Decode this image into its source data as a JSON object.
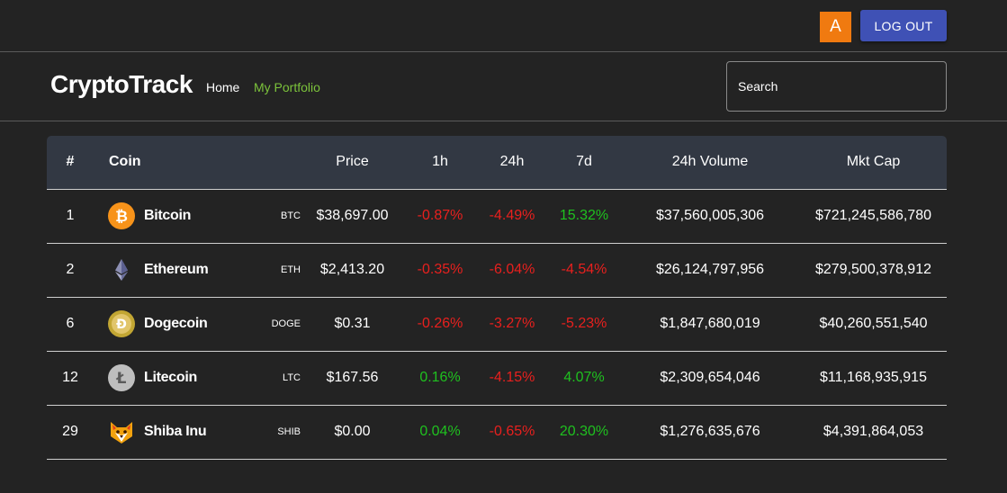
{
  "header": {
    "avatar_letter": "A",
    "logout_label": "LOG OUT"
  },
  "nav": {
    "brand": "CryptoTrack",
    "home": "Home",
    "portfolio": "My Portfolio",
    "search_placeholder": "Search"
  },
  "colors": {
    "accent_green": "#7cc33b",
    "positive": "#1fc11f",
    "negative": "#e8201e",
    "button_blue": "#3f51b5",
    "avatar_orange": "#f07a10"
  },
  "table": {
    "columns": [
      "#",
      "Coin",
      "Price",
      "1h",
      "24h",
      "7d",
      "24h Volume",
      "Mkt Cap"
    ],
    "rows": [
      {
        "rank": "1",
        "name": "Bitcoin",
        "symbol": "BTC",
        "icon": "bitcoin-icon",
        "price": "$38,697.00",
        "h1": "-0.87%",
        "h24": "-4.49%",
        "d7": "15.32%",
        "volume": "$37,560,005,306",
        "mcap": "$721,245,586,780"
      },
      {
        "rank": "2",
        "name": "Ethereum",
        "symbol": "ETH",
        "icon": "ethereum-icon",
        "price": "$2,413.20",
        "h1": "-0.35%",
        "h24": "-6.04%",
        "d7": "-4.54%",
        "volume": "$26,124,797,956",
        "mcap": "$279,500,378,912"
      },
      {
        "rank": "6",
        "name": "Dogecoin",
        "symbol": "DOGE",
        "icon": "dogecoin-icon",
        "price": "$0.31",
        "h1": "-0.26%",
        "h24": "-3.27%",
        "d7": "-5.23%",
        "volume": "$1,847,680,019",
        "mcap": "$40,260,551,540"
      },
      {
        "rank": "12",
        "name": "Litecoin",
        "symbol": "LTC",
        "icon": "litecoin-icon",
        "price": "$167.56",
        "h1": "0.16%",
        "h24": "-4.15%",
        "d7": "4.07%",
        "volume": "$2,309,654,046",
        "mcap": "$11,168,935,915"
      },
      {
        "rank": "29",
        "name": "Shiba Inu",
        "symbol": "SHIB",
        "icon": "shiba-inu-icon",
        "price": "$0.00",
        "h1": "0.04%",
        "h24": "-0.65%",
        "d7": "20.30%",
        "volume": "$1,276,635,676",
        "mcap": "$4,391,864,053"
      }
    ]
  }
}
